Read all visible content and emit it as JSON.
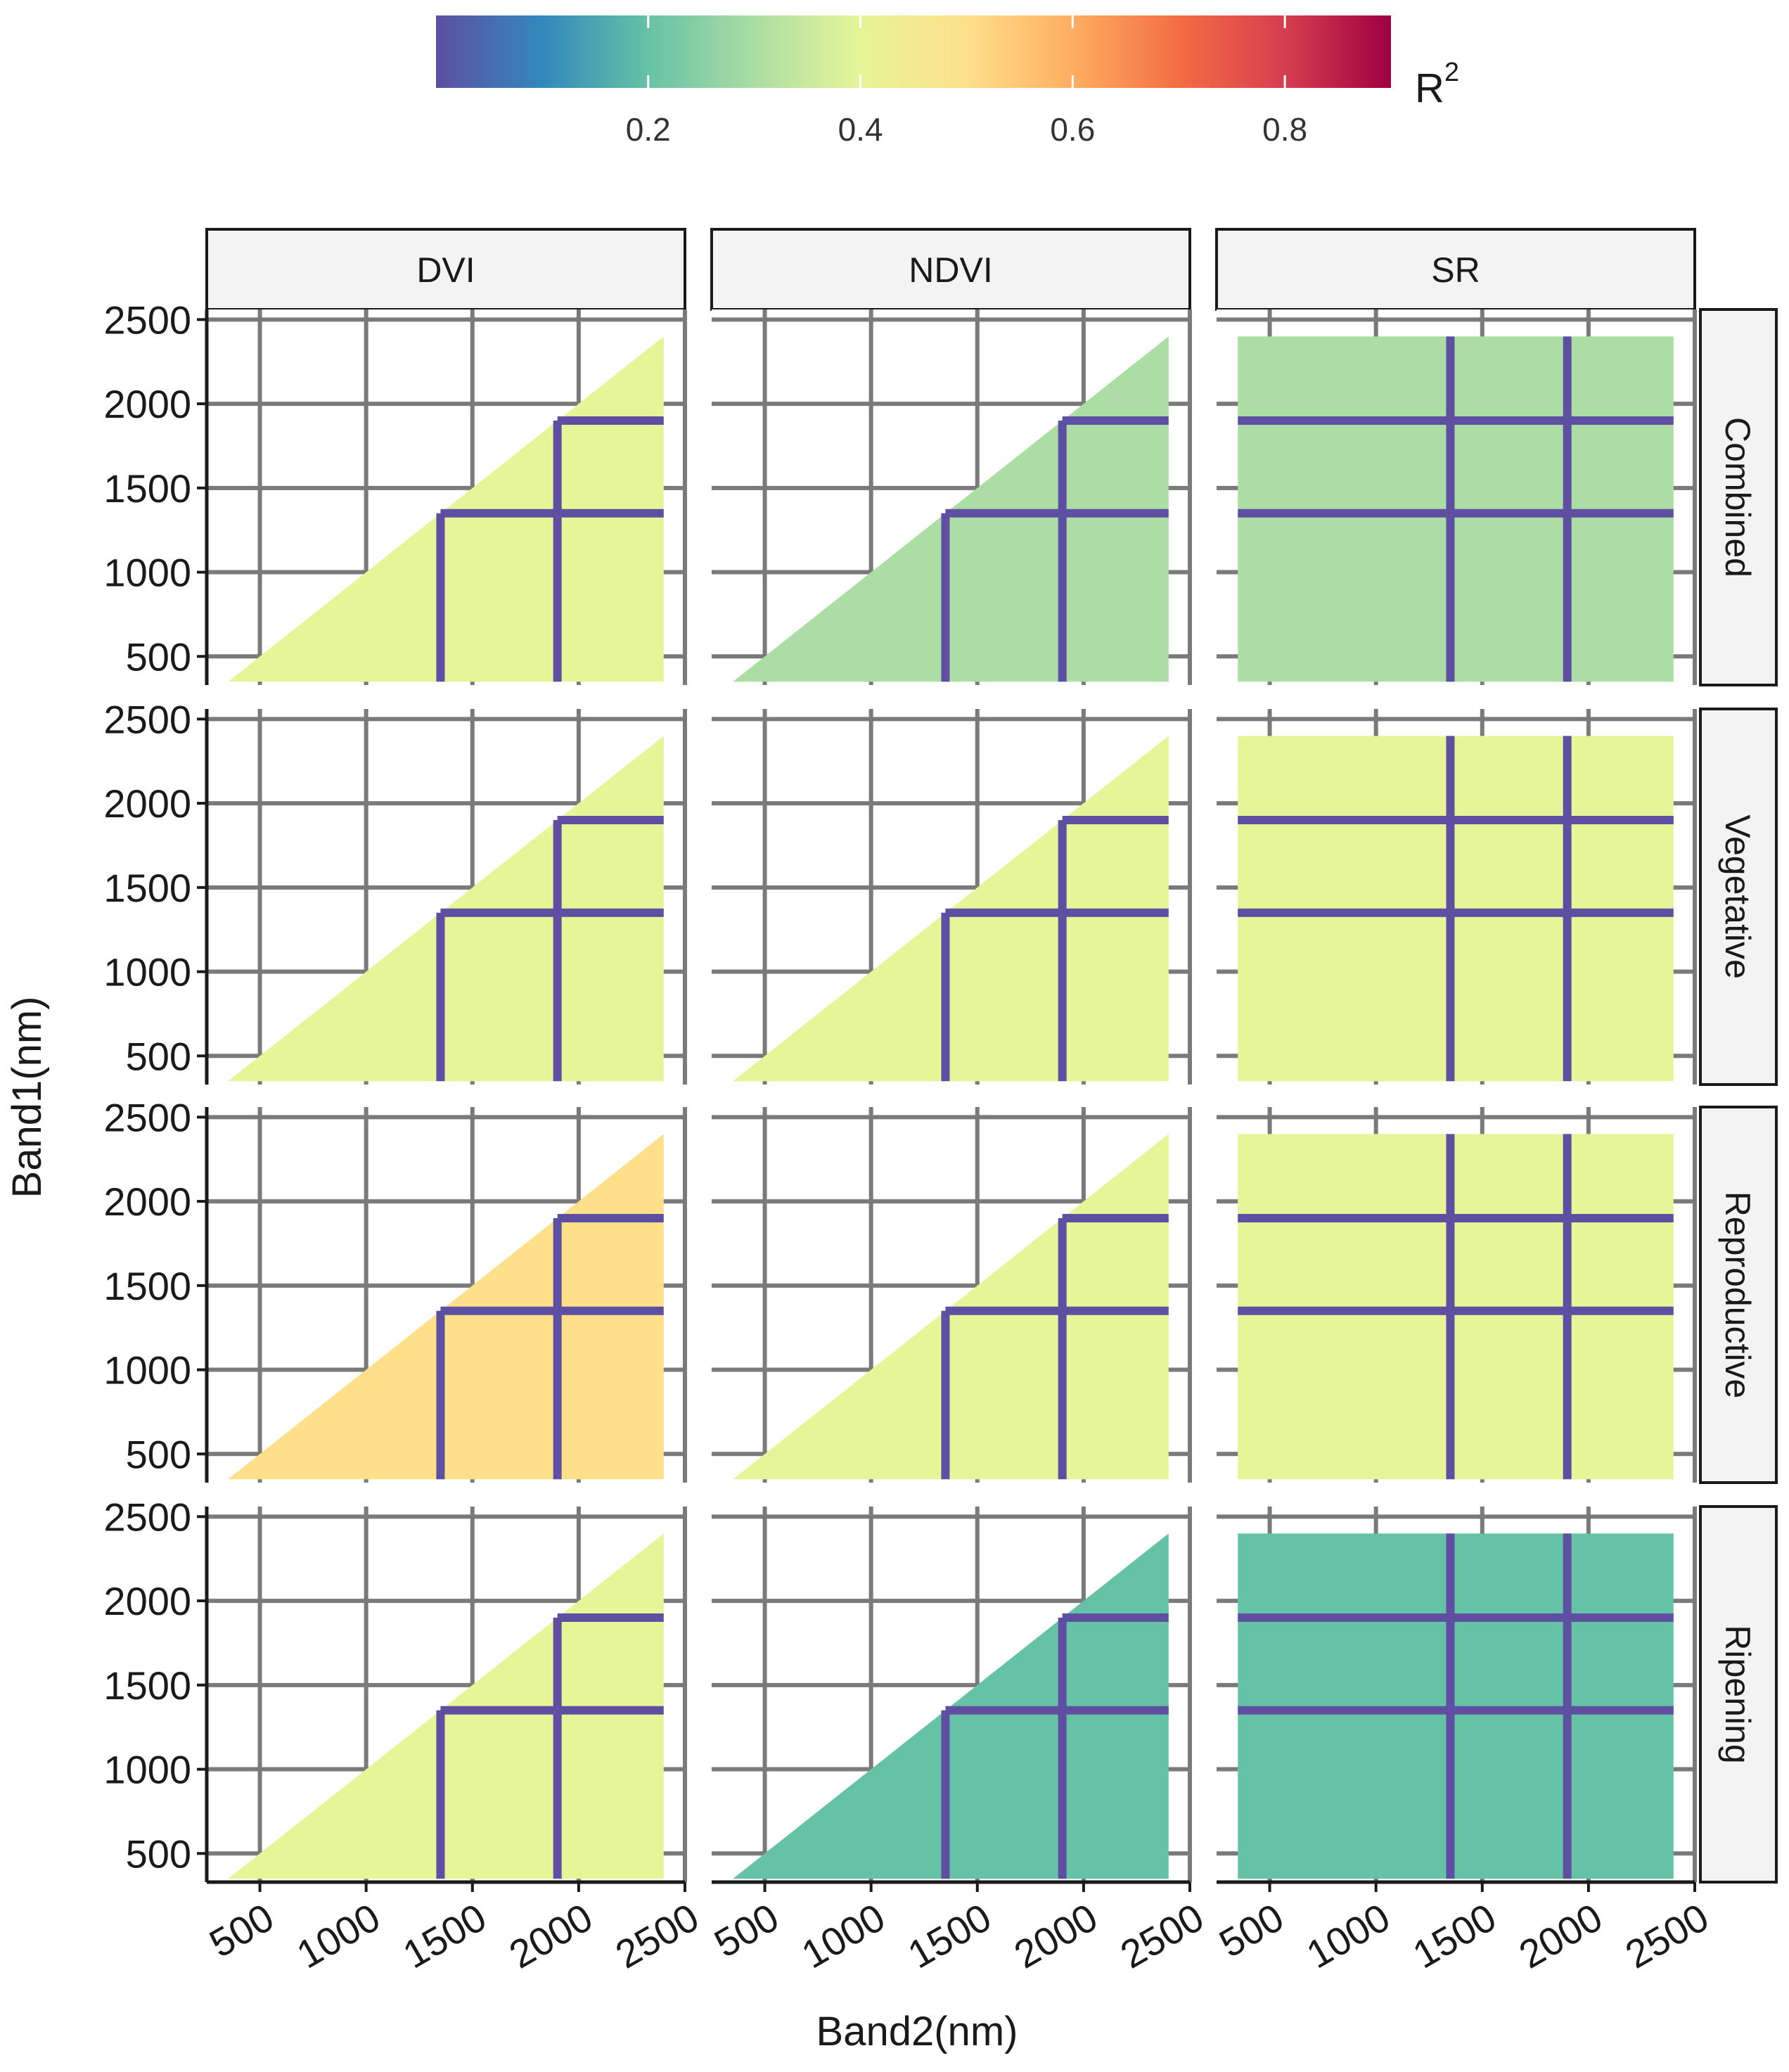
{
  "chart_data": {
    "type": "heatmap",
    "description_kind": "faceted contour heatmap of R^2 for vegetation indices from band pairs",
    "colorbar": {
      "label_main": "R",
      "label_sup": "2",
      "ticks": [
        "0.2",
        "0.4",
        "0.6",
        "0.8"
      ],
      "tick_values": [
        0.2,
        0.4,
        0.6,
        0.8
      ],
      "range": [
        0.0,
        0.9
      ],
      "palette": [
        "#5e4fa2",
        "#3288bd",
        "#66c2a5",
        "#abdda4",
        "#e6f598",
        "#fee08b",
        "#fdae61",
        "#f46d43",
        "#d53e4f",
        "#9e0142"
      ]
    },
    "columns": [
      "DVI",
      "NDVI",
      "SR"
    ],
    "rows": [
      "Combined",
      "Vegetative",
      "Reproductive",
      "Ripening"
    ],
    "x_axis": {
      "label": "Band2(nm)",
      "ticks": [
        "500",
        "1000",
        "1500",
        "2000",
        "2500"
      ],
      "tick_values": [
        500,
        1000,
        1500,
        2000,
        2500
      ],
      "range": [
        250,
        2500
      ]
    },
    "y_axis": {
      "label": "Band1(nm)",
      "ticks": [
        "500",
        "1000",
        "1500",
        "2000",
        "2500"
      ],
      "tick_values": [
        500,
        1000,
        1500,
        2000,
        2500
      ],
      "range": [
        330,
        2560
      ]
    },
    "data_extent_nm": [
      350,
      2400
    ],
    "absorption_bands_nm": [
      1350,
      1900
    ],
    "panels": [
      {
        "column": "DVI",
        "row": "Combined",
        "shape": "triangle",
        "level": 0.38
      },
      {
        "column": "NDVI",
        "row": "Combined",
        "shape": "triangle",
        "level": 0.3
      },
      {
        "column": "SR",
        "row": "Combined",
        "shape": "square",
        "level": 0.3
      },
      {
        "column": "DVI",
        "row": "Vegetative",
        "shape": "triangle",
        "level": 0.38
      },
      {
        "column": "NDVI",
        "row": "Vegetative",
        "shape": "triangle",
        "level": 0.36
      },
      {
        "column": "SR",
        "row": "Vegetative",
        "shape": "square",
        "level": 0.4
      },
      {
        "column": "DVI",
        "row": "Reproductive",
        "shape": "triangle",
        "level": 0.48
      },
      {
        "column": "NDVI",
        "row": "Reproductive",
        "shape": "triangle",
        "level": 0.36
      },
      {
        "column": "SR",
        "row": "Reproductive",
        "shape": "square",
        "level": 0.38
      },
      {
        "column": "DVI",
        "row": "Ripening",
        "shape": "triangle",
        "level": 0.44
      },
      {
        "column": "NDVI",
        "row": "Ripening",
        "shape": "triangle",
        "level": 0.22
      },
      {
        "column": "SR",
        "row": "Ripening",
        "shape": "square",
        "level": 0.22
      }
    ]
  }
}
